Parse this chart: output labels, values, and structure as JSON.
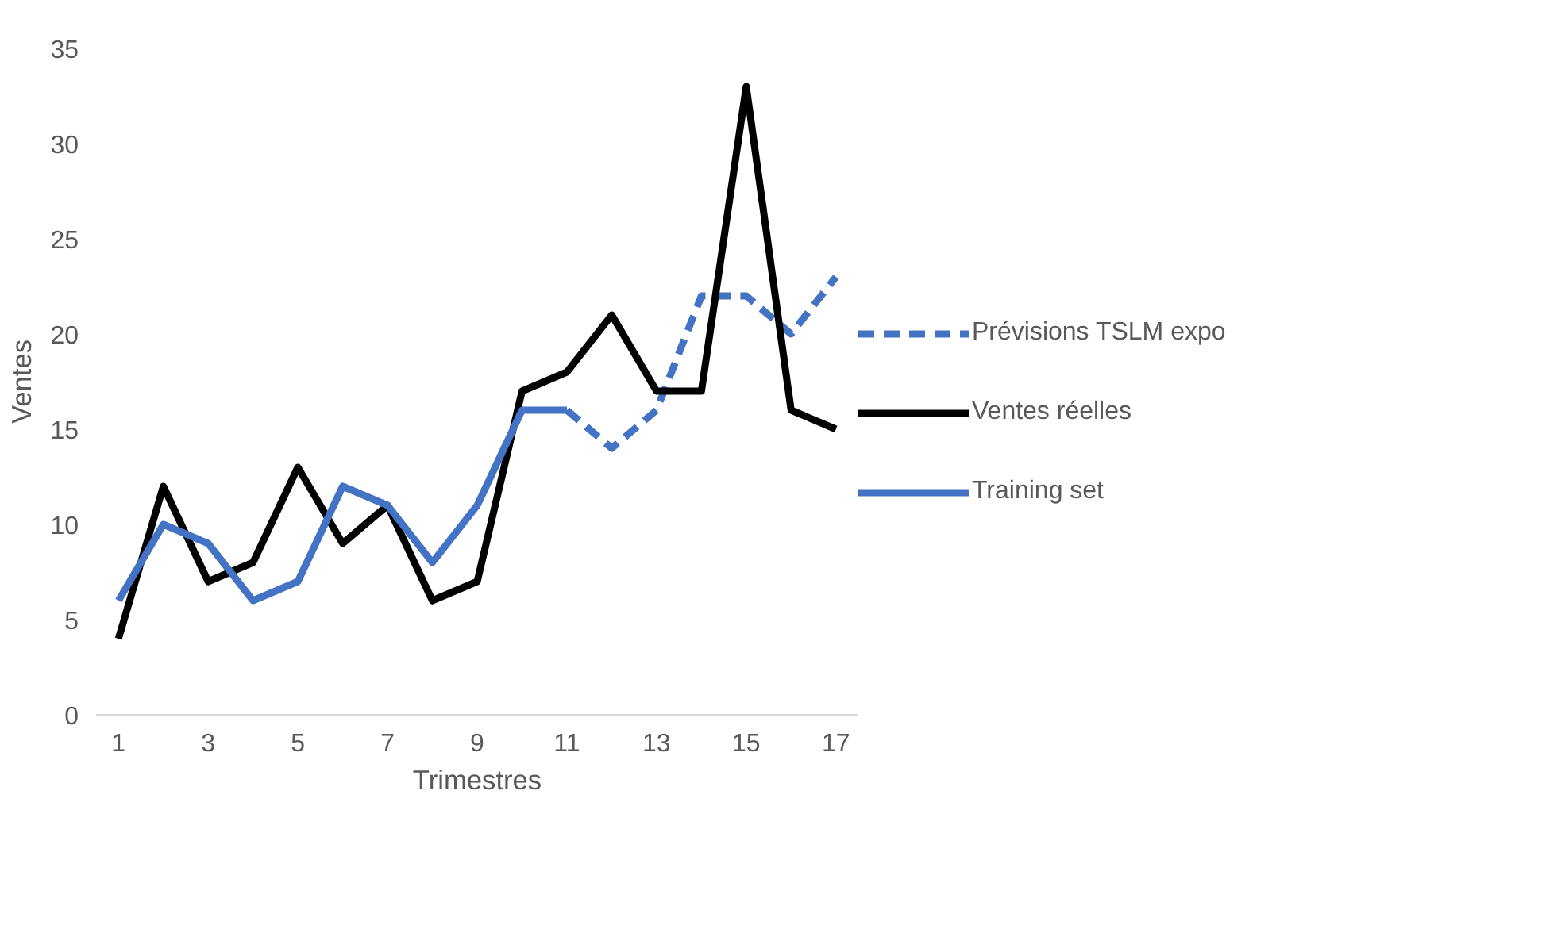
{
  "chart_data": {
    "type": "line",
    "xlabel": "Trimestres",
    "ylabel": "Ventes",
    "x": [
      1,
      2,
      3,
      4,
      5,
      6,
      7,
      8,
      9,
      10,
      11,
      12,
      13,
      14,
      15,
      16,
      17
    ],
    "xlim": [
      0.5,
      17.5
    ],
    "xticks": [
      1,
      3,
      5,
      7,
      9,
      11,
      13,
      15,
      17
    ],
    "ylim": [
      0,
      35
    ],
    "yticks": [
      0,
      5,
      10,
      15,
      20,
      25,
      30,
      35
    ],
    "grid": false,
    "legend": "right",
    "marker": "none",
    "series": [
      {
        "name": "Prévisions TSLM expo",
        "color": "#4472c4",
        "line_style": "dashed",
        "x": [
          11,
          12,
          13,
          14,
          15,
          16,
          17
        ],
        "values": [
          16,
          14,
          16,
          22,
          22,
          20,
          23
        ]
      },
      {
        "name": "Ventes réelles",
        "color": "#000000",
        "line_style": "solid",
        "values": [
          4,
          12,
          7,
          8,
          13,
          9,
          11,
          6,
          7,
          17,
          18,
          21,
          17,
          17,
          33,
          16,
          15
        ]
      },
      {
        "name": "Training set",
        "color": "#4472c4",
        "line_style": "solid",
        "x": [
          1,
          2,
          3,
          4,
          5,
          6,
          7,
          8,
          9,
          10,
          11
        ],
        "values": [
          6,
          10,
          9,
          6,
          7,
          12,
          11,
          8,
          11,
          16,
          16
        ]
      }
    ]
  }
}
